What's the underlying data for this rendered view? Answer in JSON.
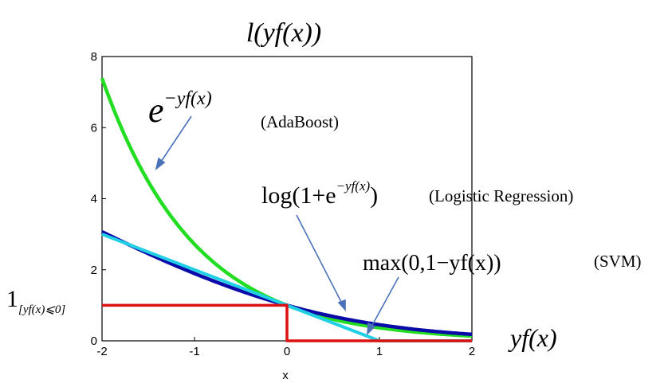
{
  "chart_data": {
    "type": "line",
    "title": "l(yf(x))",
    "xlabel": "x",
    "ylabel": "",
    "xlim": [
      -2,
      2
    ],
    "ylim": [
      0,
      8
    ],
    "xticks": [
      "-2",
      "-1",
      "0",
      "1",
      "2"
    ],
    "yticks": [
      "0",
      "2",
      "4",
      "6",
      "8"
    ],
    "grid": false,
    "series": [
      {
        "name": "AdaBoost",
        "color": "#22dd22",
        "x": [
          -2.0,
          -1.5,
          -1.0,
          -0.5,
          0.0,
          0.5,
          1.0,
          1.5,
          2.0
        ],
        "y": [
          7.39,
          4.48,
          2.72,
          1.65,
          1.0,
          0.61,
          0.37,
          0.22,
          0.14
        ]
      },
      {
        "name": "Logistic Regression",
        "color": "#0a0aa8",
        "x": [
          -2.0,
          -1.5,
          -1.0,
          -0.5,
          0.0,
          0.5,
          1.0,
          1.5,
          2.0
        ],
        "y": [
          3.05,
          2.51,
          1.89,
          1.36,
          1.0,
          0.68,
          0.45,
          0.29,
          0.18
        ]
      },
      {
        "name": "SVM",
        "color": "#22d0e6",
        "x": [
          -2.0,
          1.0,
          2.0
        ],
        "y": [
          3.0,
          0.0,
          0.0
        ]
      },
      {
        "name": "0-1 loss",
        "color": "#dd1111",
        "x": [
          -2.0,
          0.0,
          0.0,
          2.0
        ],
        "y": [
          1.0,
          1.0,
          0.0,
          0.0
        ]
      }
    ],
    "annotations": {
      "exp_base": "e",
      "exp_sup": "−yf(x)",
      "adaboost": "(AdaBoost)",
      "log_main": "log(1+e",
      "log_sup": "−yf(x)",
      "log_close": ")",
      "logistic": "(Logistic Regression)",
      "max_expr": "max(0,1−yf(x))",
      "svm": "(SVM)",
      "indicator_base": "1",
      "indicator_sub": "[yf(x)⩽0]",
      "axis_expr": "yf(x)"
    }
  }
}
